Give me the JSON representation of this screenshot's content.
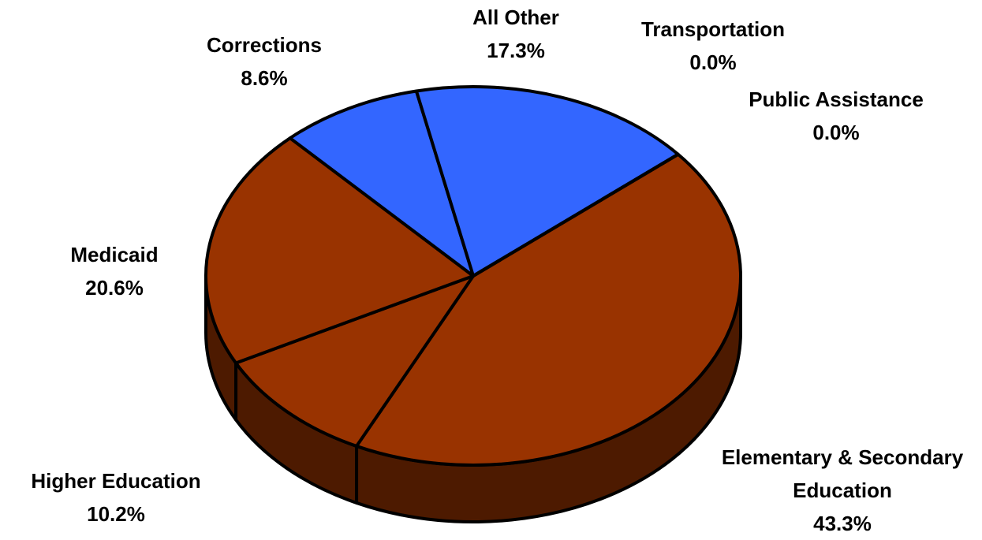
{
  "chart_data": {
    "type": "pie",
    "categories": [
      "Elementary & Secondary Education",
      "Higher Education",
      "Medicaid",
      "Corrections",
      "All Other",
      "Transportation",
      "Public Assistance"
    ],
    "values": [
      43.3,
      10.2,
      20.6,
      8.6,
      17.3,
      0.0,
      0.0
    ],
    "value_labels": [
      "43.3%",
      "10.2%",
      "20.6%",
      "8.6%",
      "17.3%",
      "0.0%",
      "0.0%"
    ],
    "colors": [
      "#993300",
      "#993300",
      "#993300",
      "#3366ff",
      "#3366ff",
      "#993300",
      "#993300"
    ]
  }
}
